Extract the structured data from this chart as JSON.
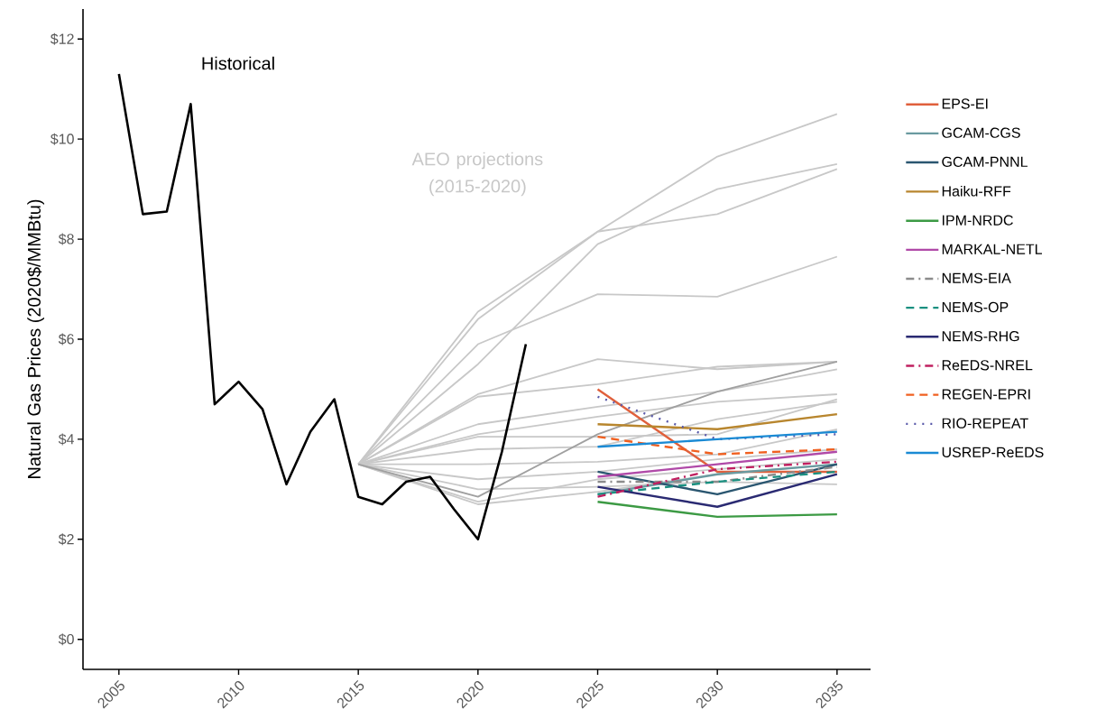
{
  "chart_data": {
    "type": "line",
    "ylabel": "Natural Gas Prices (2020$/MMBtu)",
    "xlim": [
      2003.5,
      2036.4
    ],
    "ylim": [
      -0.6,
      12.6
    ],
    "xticks": [
      2005,
      2010,
      2015,
      2020,
      2025,
      2030,
      2035
    ],
    "yticks": [
      {
        "value": 0,
        "label": "$0"
      },
      {
        "value": 2,
        "label": "$2"
      },
      {
        "value": 4,
        "label": "$4"
      },
      {
        "value": 6,
        "label": "$6"
      },
      {
        "value": 8,
        "label": "$8"
      },
      {
        "value": 10,
        "label": "$10"
      },
      {
        "value": 12,
        "label": "$12"
      }
    ],
    "grid": false,
    "legend": "right",
    "annotations": [
      "Historical",
      "AEO projections (2015-2020)"
    ],
    "series": [
      {
        "color": "#c8c8c8",
        "x": [
          2015,
          2020,
          2025,
          2030,
          2035
        ],
        "values": [
          3.5,
          6.55,
          8.15,
          9.65,
          10.5
        ]
      },
      {
        "color": "#c8c8c8",
        "x": [
          2015,
          2020,
          2025,
          2030,
          2035
        ],
        "values": [
          3.5,
          6.4,
          8.15,
          8.5,
          9.4
        ]
      },
      {
        "color": "#c8c8c8",
        "x": [
          2015,
          2020,
          2025,
          2030,
          2035
        ],
        "values": [
          3.5,
          5.5,
          7.9,
          9.0,
          9.5
        ]
      },
      {
        "color": "#c8c8c8",
        "x": [
          2015,
          2020,
          2025,
          2030,
          2035
        ],
        "values": [
          3.5,
          5.9,
          6.9,
          6.85,
          7.65
        ]
      },
      {
        "color": "#c8c8c8",
        "x": [
          2015,
          2020,
          2025,
          2030,
          2035
        ],
        "values": [
          3.5,
          4.9,
          5.6,
          5.4,
          5.55
        ]
      },
      {
        "color": "#c8c8c8",
        "x": [
          2015,
          2020,
          2025,
          2030,
          2035
        ],
        "values": [
          3.5,
          4.85,
          5.1,
          5.45,
          5.55
        ]
      },
      {
        "color": "#c8c8c8",
        "x": [
          2015,
          2020,
          2025,
          2030,
          2035
        ],
        "values": [
          3.5,
          4.3,
          4.65,
          4.95,
          5.4
        ]
      },
      {
        "color": "#c8c8c8",
        "x": [
          2015,
          2020,
          2025,
          2030,
          2035
        ],
        "values": [
          3.5,
          4.1,
          4.45,
          4.75,
          4.9
        ]
      },
      {
        "color": "#c8c8c8",
        "x": [
          2015,
          2020,
          2025,
          2030,
          2035
        ],
        "values": [
          3.5,
          4.05,
          4.05,
          4.1,
          4.8
        ]
      },
      {
        "color": "#c8c8c8",
        "x": [
          2015,
          2020,
          2025,
          2030,
          2035
        ],
        "values": [
          3.5,
          3.8,
          3.85,
          4.4,
          4.75
        ]
      },
      {
        "color": "#c8c8c8",
        "x": [
          2015,
          2020,
          2025,
          2030,
          2035
        ],
        "values": [
          3.5,
          3.5,
          3.55,
          3.7,
          4.2
        ]
      },
      {
        "color": "#c8c8c8",
        "x": [
          2015,
          2020,
          2025,
          2030,
          2035
        ],
        "values": [
          3.5,
          3.2,
          3.35,
          3.6,
          3.8
        ]
      },
      {
        "color": "#c8c8c8",
        "x": [
          2015,
          2020,
          2025,
          2030,
          2035
        ],
        "values": [
          3.5,
          3.0,
          3.05,
          3.15,
          3.1
        ]
      },
      {
        "color": "#c8c8c8",
        "x": [
          2015,
          2020,
          2025,
          2030,
          2035
        ],
        "values": [
          3.5,
          2.75,
          3.2,
          3.4,
          3.6
        ]
      },
      {
        "color": "#c8c8c8",
        "x": [
          2015,
          2020,
          2025,
          2030,
          2035
        ],
        "values": [
          3.5,
          2.7,
          2.95,
          3.3,
          3.5
        ]
      },
      {
        "color": "#a0a0a0",
        "x": [
          2015,
          2020,
          2025,
          2030,
          2035
        ],
        "values": [
          3.5,
          2.85,
          4.1,
          4.95,
          5.55
        ]
      },
      {
        "color": "#000000",
        "x": [
          2005,
          2006,
          2007,
          2008,
          2009,
          2010,
          2011,
          2012,
          2013,
          2014,
          2015,
          2016,
          2017,
          2018,
          2019,
          2020,
          2021,
          2022
        ],
        "values": [
          11.3,
          8.5,
          8.55,
          10.7,
          4.7,
          5.15,
          4.6,
          3.1,
          4.15,
          4.8,
          2.85,
          2.7,
          3.15,
          3.25,
          2.6,
          2.0,
          3.75,
          5.9
        ]
      },
      {
        "name": "EPS-EI",
        "color": "#e0603c",
        "x": [
          2025,
          2030,
          2035
        ],
        "values": [
          5.0,
          3.35,
          3.35
        ]
      },
      {
        "name": "GCAM-CGS",
        "color": "#6a9aa0",
        "x": [
          2025,
          2030,
          2035
        ],
        "values": [
          2.9,
          3.3,
          3.5
        ]
      },
      {
        "name": "GCAM-PNNL",
        "color": "#2a5670",
        "x": [
          2025,
          2030,
          2035
        ],
        "values": [
          3.35,
          2.9,
          3.5
        ]
      },
      {
        "name": "Haiku-RFF",
        "color": "#b8862e",
        "x": [
          2025,
          2030,
          2035
        ],
        "values": [
          4.3,
          4.2,
          4.5
        ]
      },
      {
        "name": "IPM-NRDC",
        "color": "#3c9a44",
        "x": [
          2025,
          2030,
          2035
        ],
        "values": [
          2.75,
          2.45,
          2.5
        ]
      },
      {
        "name": "MARKAL-NETL",
        "color": "#b04aa8",
        "x": [
          2025,
          2030,
          2035
        ],
        "values": [
          3.25,
          3.5,
          3.75
        ]
      },
      {
        "name": "NEMS-EIA",
        "color": "#8c8c8c",
        "line_style": "dashdot",
        "x": [
          2025,
          2030,
          2035
        ],
        "values": [
          3.15,
          3.15,
          3.45
        ]
      },
      {
        "name": "NEMS-OP",
        "color": "#1a9080",
        "line_style": "dashed",
        "x": [
          2025,
          2030,
          2035
        ],
        "values": [
          2.9,
          3.15,
          3.35
        ]
      },
      {
        "name": "NEMS-RHG",
        "color": "#2a2a72",
        "x": [
          2025,
          2030,
          2035
        ],
        "values": [
          3.05,
          2.65,
          3.3
        ]
      },
      {
        "name": "ReEDS-NREL",
        "color": "#c02060",
        "line_style": "dashdot",
        "x": [
          2025,
          2030,
          2035
        ],
        "values": [
          2.85,
          3.4,
          3.55
        ]
      },
      {
        "name": "REGEN-EPRI",
        "color": "#f06020",
        "line_style": "dashed",
        "x": [
          2025,
          2030,
          2035
        ],
        "values": [
          4.05,
          3.7,
          3.8
        ]
      },
      {
        "name": "RIO-REPEAT",
        "color": "#5a5aaa",
        "line_style": "dotted",
        "x": [
          2025,
          2030,
          2035
        ],
        "values": [
          4.85,
          4.0,
          4.1
        ]
      },
      {
        "name": "USREP-ReEDS",
        "color": "#1a8ad4",
        "x": [
          2025,
          2030,
          2035
        ],
        "values": [
          3.85,
          4.0,
          4.15
        ]
      }
    ]
  }
}
